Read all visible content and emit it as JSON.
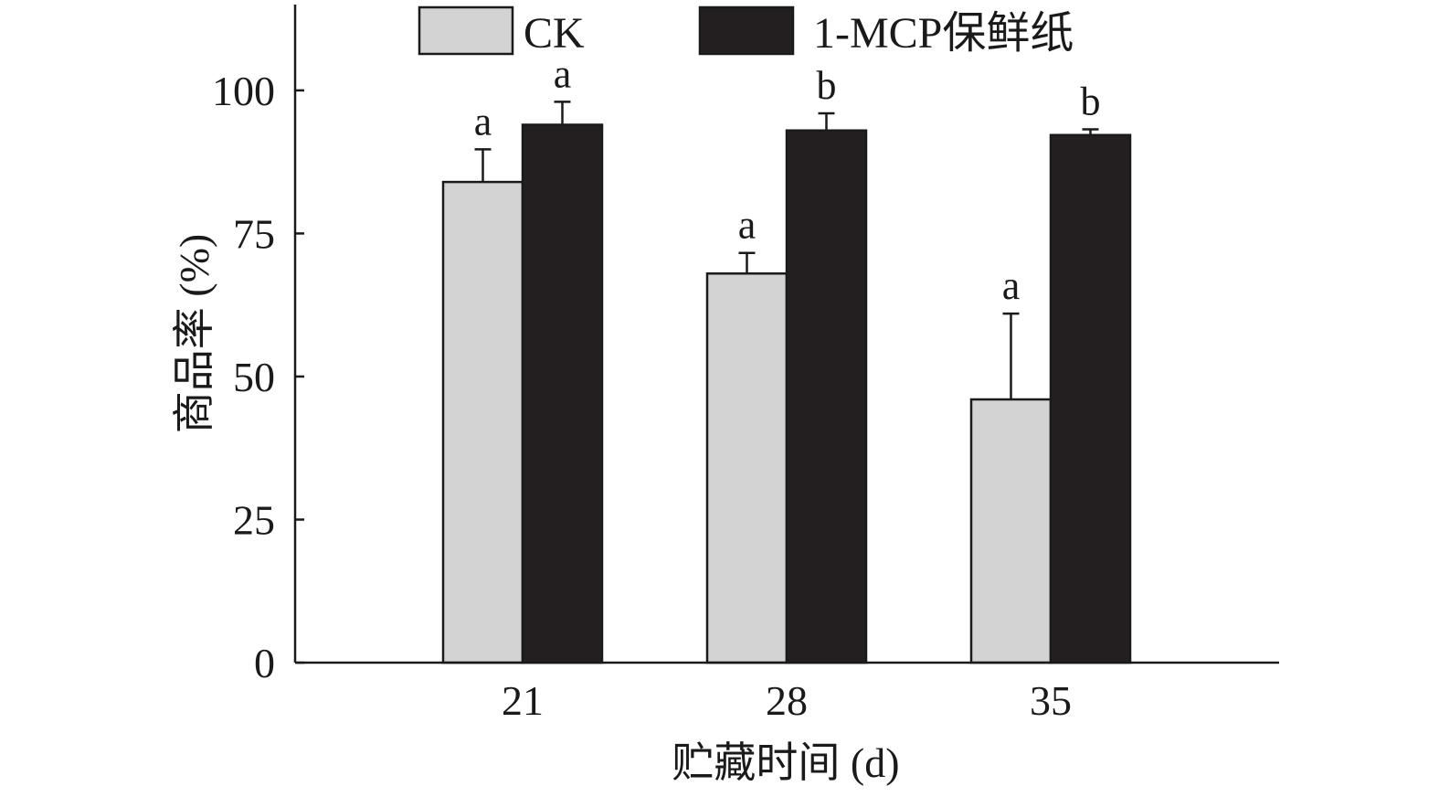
{
  "chart_data": {
    "type": "bar",
    "categories": [
      "21",
      "28",
      "35"
    ],
    "series": [
      {
        "name": "CK",
        "color": "#d3d3d3",
        "values": [
          84,
          68,
          46
        ],
        "errors": [
          5.7,
          3.6,
          15
        ],
        "sig": [
          "a",
          "a",
          "a"
        ]
      },
      {
        "name": "1-MCP保鲜纸",
        "color": "#231f20",
        "values": [
          94,
          93,
          92.2
        ],
        "errors": [
          4,
          3,
          1
        ],
        "sig": [
          "a",
          "b",
          "b"
        ]
      }
    ],
    "xlabel": "贮藏时间 (d)",
    "ylabel": "商品率 (%)",
    "ylim": [
      0,
      115
    ],
    "yticks": [
      0,
      25,
      50,
      75,
      100
    ],
    "grid": false,
    "legend": "top"
  }
}
